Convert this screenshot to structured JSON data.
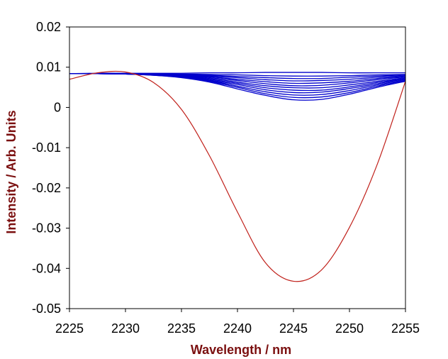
{
  "chart_data": {
    "type": "line",
    "title": "",
    "xlabel": "Wavelength / nm",
    "ylabel": "Intensity / Arb. Units",
    "xlim": [
      2225,
      2255
    ],
    "ylim": [
      -0.05,
      0.02
    ],
    "xticks": [
      "2225",
      "2230",
      "2235",
      "2240",
      "2245",
      "2250",
      "2255"
    ],
    "yticks": [
      "0.02",
      "0.01",
      "0",
      "-0.01",
      "-0.02",
      "-0.03",
      "-0.04",
      "-0.05"
    ],
    "grid": false,
    "colors": {
      "red_series": "#c0201a",
      "blue_series": "#0000cc",
      "axis_title": "#7b1010"
    },
    "x": [
      2225,
      2227.5,
      2230,
      2232.5,
      2235,
      2237.5,
      2240,
      2242.5,
      2245,
      2247.5,
      2250,
      2252.5,
      2255
    ],
    "series": [
      {
        "color": "red",
        "values": [
          0.007,
          0.0086,
          0.0088,
          0.0062,
          -0.0005,
          -0.012,
          -0.026,
          -0.0386,
          -0.0432,
          -0.0404,
          -0.0298,
          -0.014,
          0.0065
        ]
      },
      {
        "color": "blue",
        "values": [
          0.0084,
          0.0085,
          0.0085,
          0.0085,
          0.0085,
          0.0086,
          0.0086,
          0.0087,
          0.0087,
          0.0087,
          0.0086,
          0.0086,
          0.0086
        ]
      },
      {
        "color": "blue",
        "values": [
          0.0084,
          0.0084,
          0.0084,
          0.0084,
          0.0083,
          0.0082,
          0.0081,
          0.0079,
          0.0078,
          0.0078,
          0.0079,
          0.0081,
          0.0082
        ]
      },
      {
        "color": "blue",
        "values": [
          0.0084,
          0.0084,
          0.0084,
          0.0083,
          0.0082,
          0.008,
          0.0077,
          0.0074,
          0.0072,
          0.0072,
          0.0075,
          0.0078,
          0.0081
        ]
      },
      {
        "color": "blue",
        "values": [
          0.0084,
          0.0084,
          0.0084,
          0.0083,
          0.0081,
          0.0078,
          0.0074,
          0.0069,
          0.0066,
          0.0067,
          0.007,
          0.0075,
          0.0079
        ]
      },
      {
        "color": "blue",
        "values": [
          0.0084,
          0.0084,
          0.0084,
          0.0083,
          0.008,
          0.0076,
          0.007,
          0.0064,
          0.006,
          0.0061,
          0.0065,
          0.0072,
          0.0077
        ]
      },
      {
        "color": "blue",
        "values": [
          0.0084,
          0.0084,
          0.0083,
          0.0082,
          0.008,
          0.0074,
          0.0067,
          0.0059,
          0.0054,
          0.0055,
          0.0061,
          0.0069,
          0.0076
        ]
      },
      {
        "color": "blue",
        "values": [
          0.0084,
          0.0084,
          0.0083,
          0.0082,
          0.0079,
          0.0072,
          0.0063,
          0.0054,
          0.0049,
          0.0049,
          0.0056,
          0.0065,
          0.0074
        ]
      },
      {
        "color": "blue",
        "values": [
          0.0084,
          0.0084,
          0.0083,
          0.0082,
          0.0078,
          0.007,
          0.006,
          0.0049,
          0.0043,
          0.0043,
          0.0051,
          0.0062,
          0.0072
        ]
      },
      {
        "color": "blue",
        "values": [
          0.0084,
          0.0084,
          0.0083,
          0.0081,
          0.0077,
          0.0068,
          0.0057,
          0.0044,
          0.0037,
          0.0038,
          0.0047,
          0.0059,
          0.0071
        ]
      },
      {
        "color": "blue",
        "values": [
          0.0084,
          0.0084,
          0.0083,
          0.0081,
          0.0076,
          0.0067,
          0.0053,
          0.0039,
          0.0031,
          0.0032,
          0.0042,
          0.0056,
          0.0069
        ]
      },
      {
        "color": "blue",
        "values": [
          0.0084,
          0.0084,
          0.0083,
          0.008,
          0.0075,
          0.0065,
          0.005,
          0.0034,
          0.0025,
          0.0026,
          0.0037,
          0.0053,
          0.0067
        ]
      },
      {
        "color": "blue",
        "values": [
          0.0084,
          0.0084,
          0.0083,
          0.008,
          0.0074,
          0.0063,
          0.0046,
          0.003,
          0.0019,
          0.002,
          0.0033,
          0.005,
          0.0065
        ]
      }
    ]
  }
}
